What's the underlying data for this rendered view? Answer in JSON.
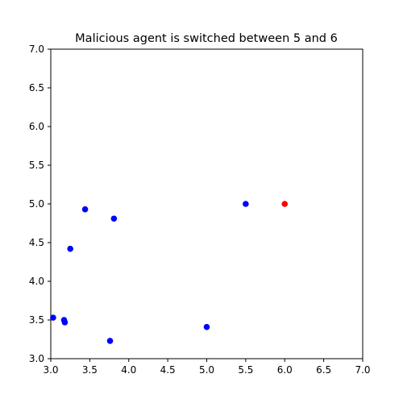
{
  "chart_data": {
    "type": "scatter",
    "title": "Malicious agent is switched between 5 and 6",
    "xlabel": "",
    "ylabel": "",
    "xlim": [
      3.0,
      7.0
    ],
    "ylim": [
      3.0,
      7.0
    ],
    "xticks": [
      "3.0",
      "3.5",
      "4.0",
      "4.5",
      "5.0",
      "5.5",
      "6.0",
      "6.5",
      "7.0"
    ],
    "yticks": [
      "3.0",
      "3.5",
      "4.0",
      "4.5",
      "5.0",
      "5.5",
      "6.0",
      "6.5",
      "7.0"
    ],
    "grid": false,
    "legend": "none",
    "series": [
      {
        "color": "#0000ff",
        "points": [
          {
            "x": 3.03,
            "y": 3.53
          },
          {
            "x": 3.17,
            "y": 3.5
          },
          {
            "x": 3.18,
            "y": 3.47
          },
          {
            "x": 3.25,
            "y": 4.42
          },
          {
            "x": 3.44,
            "y": 4.93
          },
          {
            "x": 3.76,
            "y": 3.23
          },
          {
            "x": 3.81,
            "y": 4.81
          },
          {
            "x": 5.0,
            "y": 3.41
          },
          {
            "x": 5.5,
            "y": 5.0
          }
        ]
      },
      {
        "color": "#ff0000",
        "points": [
          {
            "x": 6.0,
            "y": 5.0
          }
        ]
      }
    ]
  }
}
